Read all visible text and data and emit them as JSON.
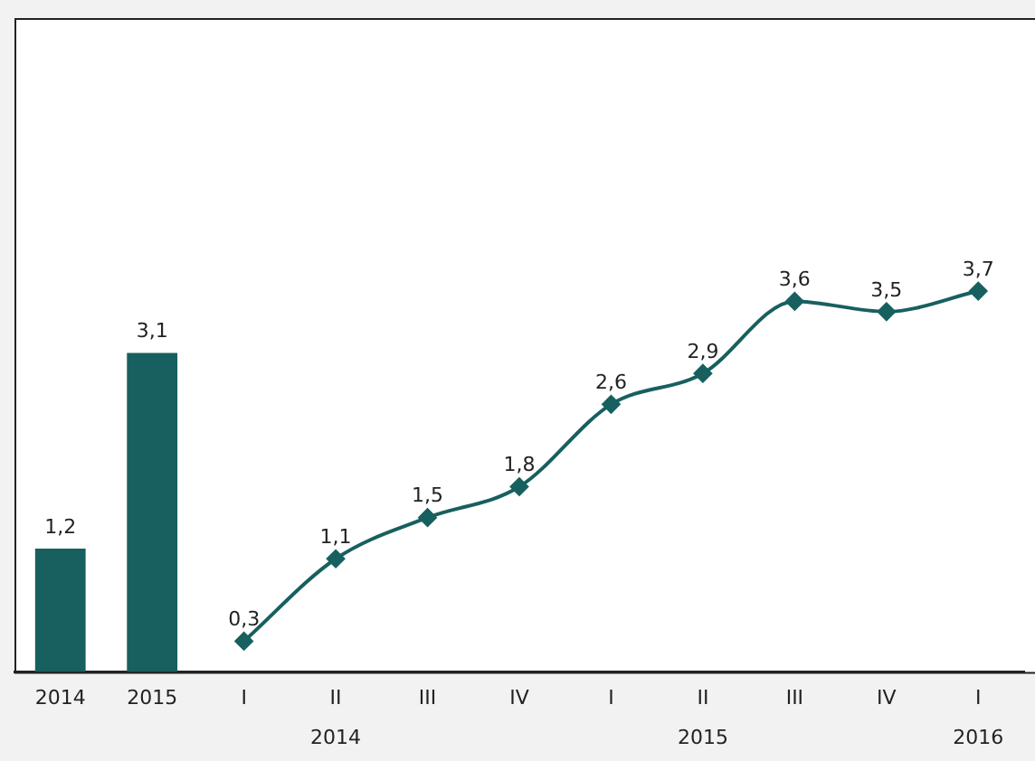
{
  "chart_data": {
    "type": "bar",
    "categories": [
      "2014",
      "2015",
      "I",
      "II",
      "III",
      "IV",
      "I",
      "II",
      "III",
      "IV",
      "I"
    ],
    "series": [
      {
        "color": "#17605f",
        "values": [
          1.2,
          3.1,
          null,
          null,
          null,
          null,
          null,
          null,
          null,
          null,
          null
        ],
        "value_labels": [
          "1,2",
          "3,1",
          null,
          null,
          null,
          null,
          null,
          null,
          null,
          null,
          null
        ]
      },
      {
        "type": "line",
        "color": "#17605f",
        "values": [
          null,
          null,
          0.3,
          1.1,
          1.5,
          1.8,
          2.6,
          2.9,
          3.6,
          3.5,
          3.7
        ],
        "value_labels": [
          null,
          null,
          "0,3",
          "1,1",
          "1,5",
          "1,8",
          "2,6",
          "2,9",
          "3,6",
          "3,5",
          "3,7"
        ]
      }
    ],
    "annotations": [
      "2014",
      "2015",
      "2016"
    ],
    "marker": "diamond",
    "line_style": "solid",
    "legend": false,
    "grid": false
  }
}
